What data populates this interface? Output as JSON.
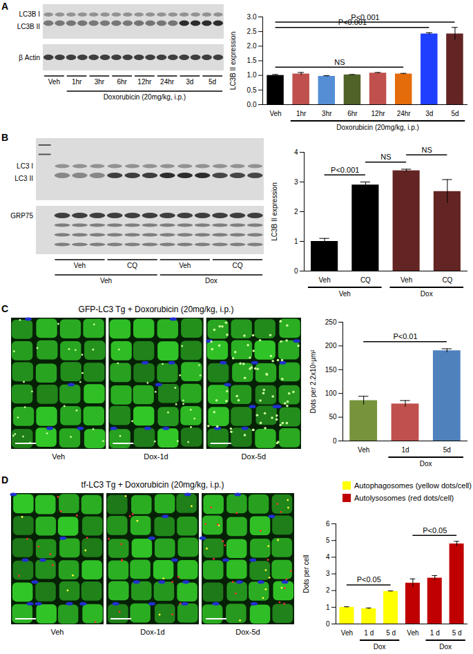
{
  "chart_data": [
    {
      "type": "bar",
      "y_label": "LC3B II expression",
      "categories": [
        "Veh",
        "1hr",
        "3hr",
        "6hr",
        "12hr",
        "24hr",
        "3d",
        "5d"
      ],
      "values": [
        1.0,
        1.05,
        0.97,
        1.02,
        1.08,
        1.05,
        2.42,
        2.42
      ],
      "errors": [
        0.03,
        0.05,
        0.02,
        0.01,
        0.02,
        0.02,
        0.04,
        0.22
      ],
      "colors": [
        "#000000",
        "#c0504d",
        "#558ed5",
        "#4f6228",
        "#c0504d",
        "#e46c0a",
        "#1f3fff",
        "#632523"
      ],
      "ylim": [
        0,
        3
      ],
      "yticks": [
        {
          "value": 0,
          "label": "0.0"
        },
        0.5,
        {
          "value": 1,
          "label": "1.0"
        },
        1.5,
        {
          "value": 2,
          "label": "2.0"
        },
        2.5,
        {
          "value": 3,
          "label": "3.0"
        }
      ],
      "groups": [
        {
          "label": "Doxorubicin (20mg/kg, i.p.)",
          "start": 1,
          "end": 7
        }
      ],
      "annotations": [
        {
          "text": "NS",
          "from": 0,
          "to": 5
        },
        {
          "text": "P<0.001",
          "from": 0,
          "to": 6
        },
        {
          "text": "P<0.001",
          "from": 0,
          "to": 7
        }
      ]
    },
    {
      "type": "bar",
      "y_label": "LC3B II expression",
      "categories": [
        "Veh",
        "CQ",
        "Veh",
        "CQ"
      ],
      "values": [
        1.0,
        2.9,
        3.38,
        2.68
      ],
      "errors": [
        0.1,
        0.1,
        0.05,
        0.4
      ],
      "colors": [
        "#000000",
        "#000000",
        "#632523",
        "#632523"
      ],
      "ylim": [
        0,
        4
      ],
      "yticks": [
        0,
        1,
        2,
        3,
        4
      ],
      "groups": [
        {
          "label": "Veh",
          "start": 0,
          "end": 1
        },
        {
          "label": "Dox",
          "start": 2,
          "end": 3
        }
      ],
      "annotations": [
        {
          "text": "P<0.001",
          "from": 0,
          "to": 1
        },
        {
          "text": "NS",
          "from": 1,
          "to": 2
        },
        {
          "text": "NS",
          "from": 2,
          "to": 3
        }
      ]
    },
    {
      "type": "bar",
      "y_label": "Dots per 2.2x10⁵μm²",
      "categories": [
        "Veh",
        "1d",
        "5d"
      ],
      "values": [
        85,
        78,
        190
      ],
      "errors": [
        9,
        7,
        4
      ],
      "colors": [
        "#77933c",
        "#c0504d",
        "#4f81bd"
      ],
      "ylim": [
        0,
        250
      ],
      "yticks": [
        0,
        50,
        100,
        150,
        200,
        250
      ],
      "groups": [
        {
          "label": "Dox",
          "start": 1,
          "end": 2
        }
      ],
      "annotations": [
        {
          "text": "P<0.01",
          "from": 0,
          "to": 2
        }
      ]
    },
    {
      "type": "bar",
      "y_label": "Dots per cell",
      "categories": [
        "Veh",
        "1 d",
        "5 d",
        "Veh",
        "1 d",
        "5 d"
      ],
      "series": [
        {
          "name": "Autophagosomes (yellow dots/cell)",
          "color": "#ffff00",
          "values": [
            1.0,
            0.92,
            1.95,
            null,
            null,
            null
          ],
          "errors": [
            0.03,
            0.04,
            0.03,
            null,
            null,
            null
          ]
        },
        {
          "name": "Autolysosomes (red dots/cell)",
          "color": "#c00000",
          "values": [
            null,
            null,
            null,
            2.45,
            2.75,
            4.8
          ],
          "errors": [
            null,
            null,
            null,
            0.25,
            0.15,
            0.15
          ]
        }
      ],
      "legend": "top",
      "ylim": [
        0,
        6
      ],
      "yticks": [
        0,
        1,
        2,
        3,
        4,
        5,
        6
      ],
      "groups": [
        {
          "label": "Dox",
          "start": 1,
          "end": 2
        },
        {
          "label": "Dox",
          "start": 4,
          "end": 5
        }
      ],
      "annotations": [
        {
          "text": "P<0.05",
          "from": 0,
          "to": 2
        },
        {
          "text": "P<0.05",
          "from": 3,
          "to": 5
        }
      ]
    }
  ],
  "figure": {
    "panels": [
      {
        "letter": "A",
        "blot": {
          "rows": [
            {
              "labels": [
                "LC3B I",
                "LC3B II"
              ]
            },
            {
              "labels": [
                "β Actin"
              ]
            }
          ],
          "lanes": [
            "Veh",
            "1hr",
            "3hr",
            "6hr",
            "12hr",
            "24hr",
            "3d",
            "5d"
          ],
          "lane_group": "Doxorubicin (20mg/kg, i.p.)"
        }
      },
      {
        "letter": "B",
        "blot": {
          "rows": [
            {
              "labels": [
                "LC3 I",
                "LC3 II"
              ]
            },
            {
              "labels": [
                "GRP75"
              ]
            }
          ],
          "lanes": [
            "Veh",
            "CQ",
            "Veh",
            "CQ"
          ],
          "lane_groups": [
            "Veh",
            "Dox"
          ]
        }
      },
      {
        "letter": "C",
        "images": {
          "title": "GFP-LC3 Tg + Doxorubicin (20mg/kg, i.p.)",
          "labels": [
            "Veh",
            "Dox-1d",
            "Dox-5d"
          ]
        }
      },
      {
        "letter": "D",
        "images": {
          "title": "tf-LC3 Tg + Doxorubicin (20mg/kg, i.p.)",
          "labels": [
            "Veh",
            "Dox-1d",
            "Dox-5d"
          ]
        }
      }
    ]
  }
}
